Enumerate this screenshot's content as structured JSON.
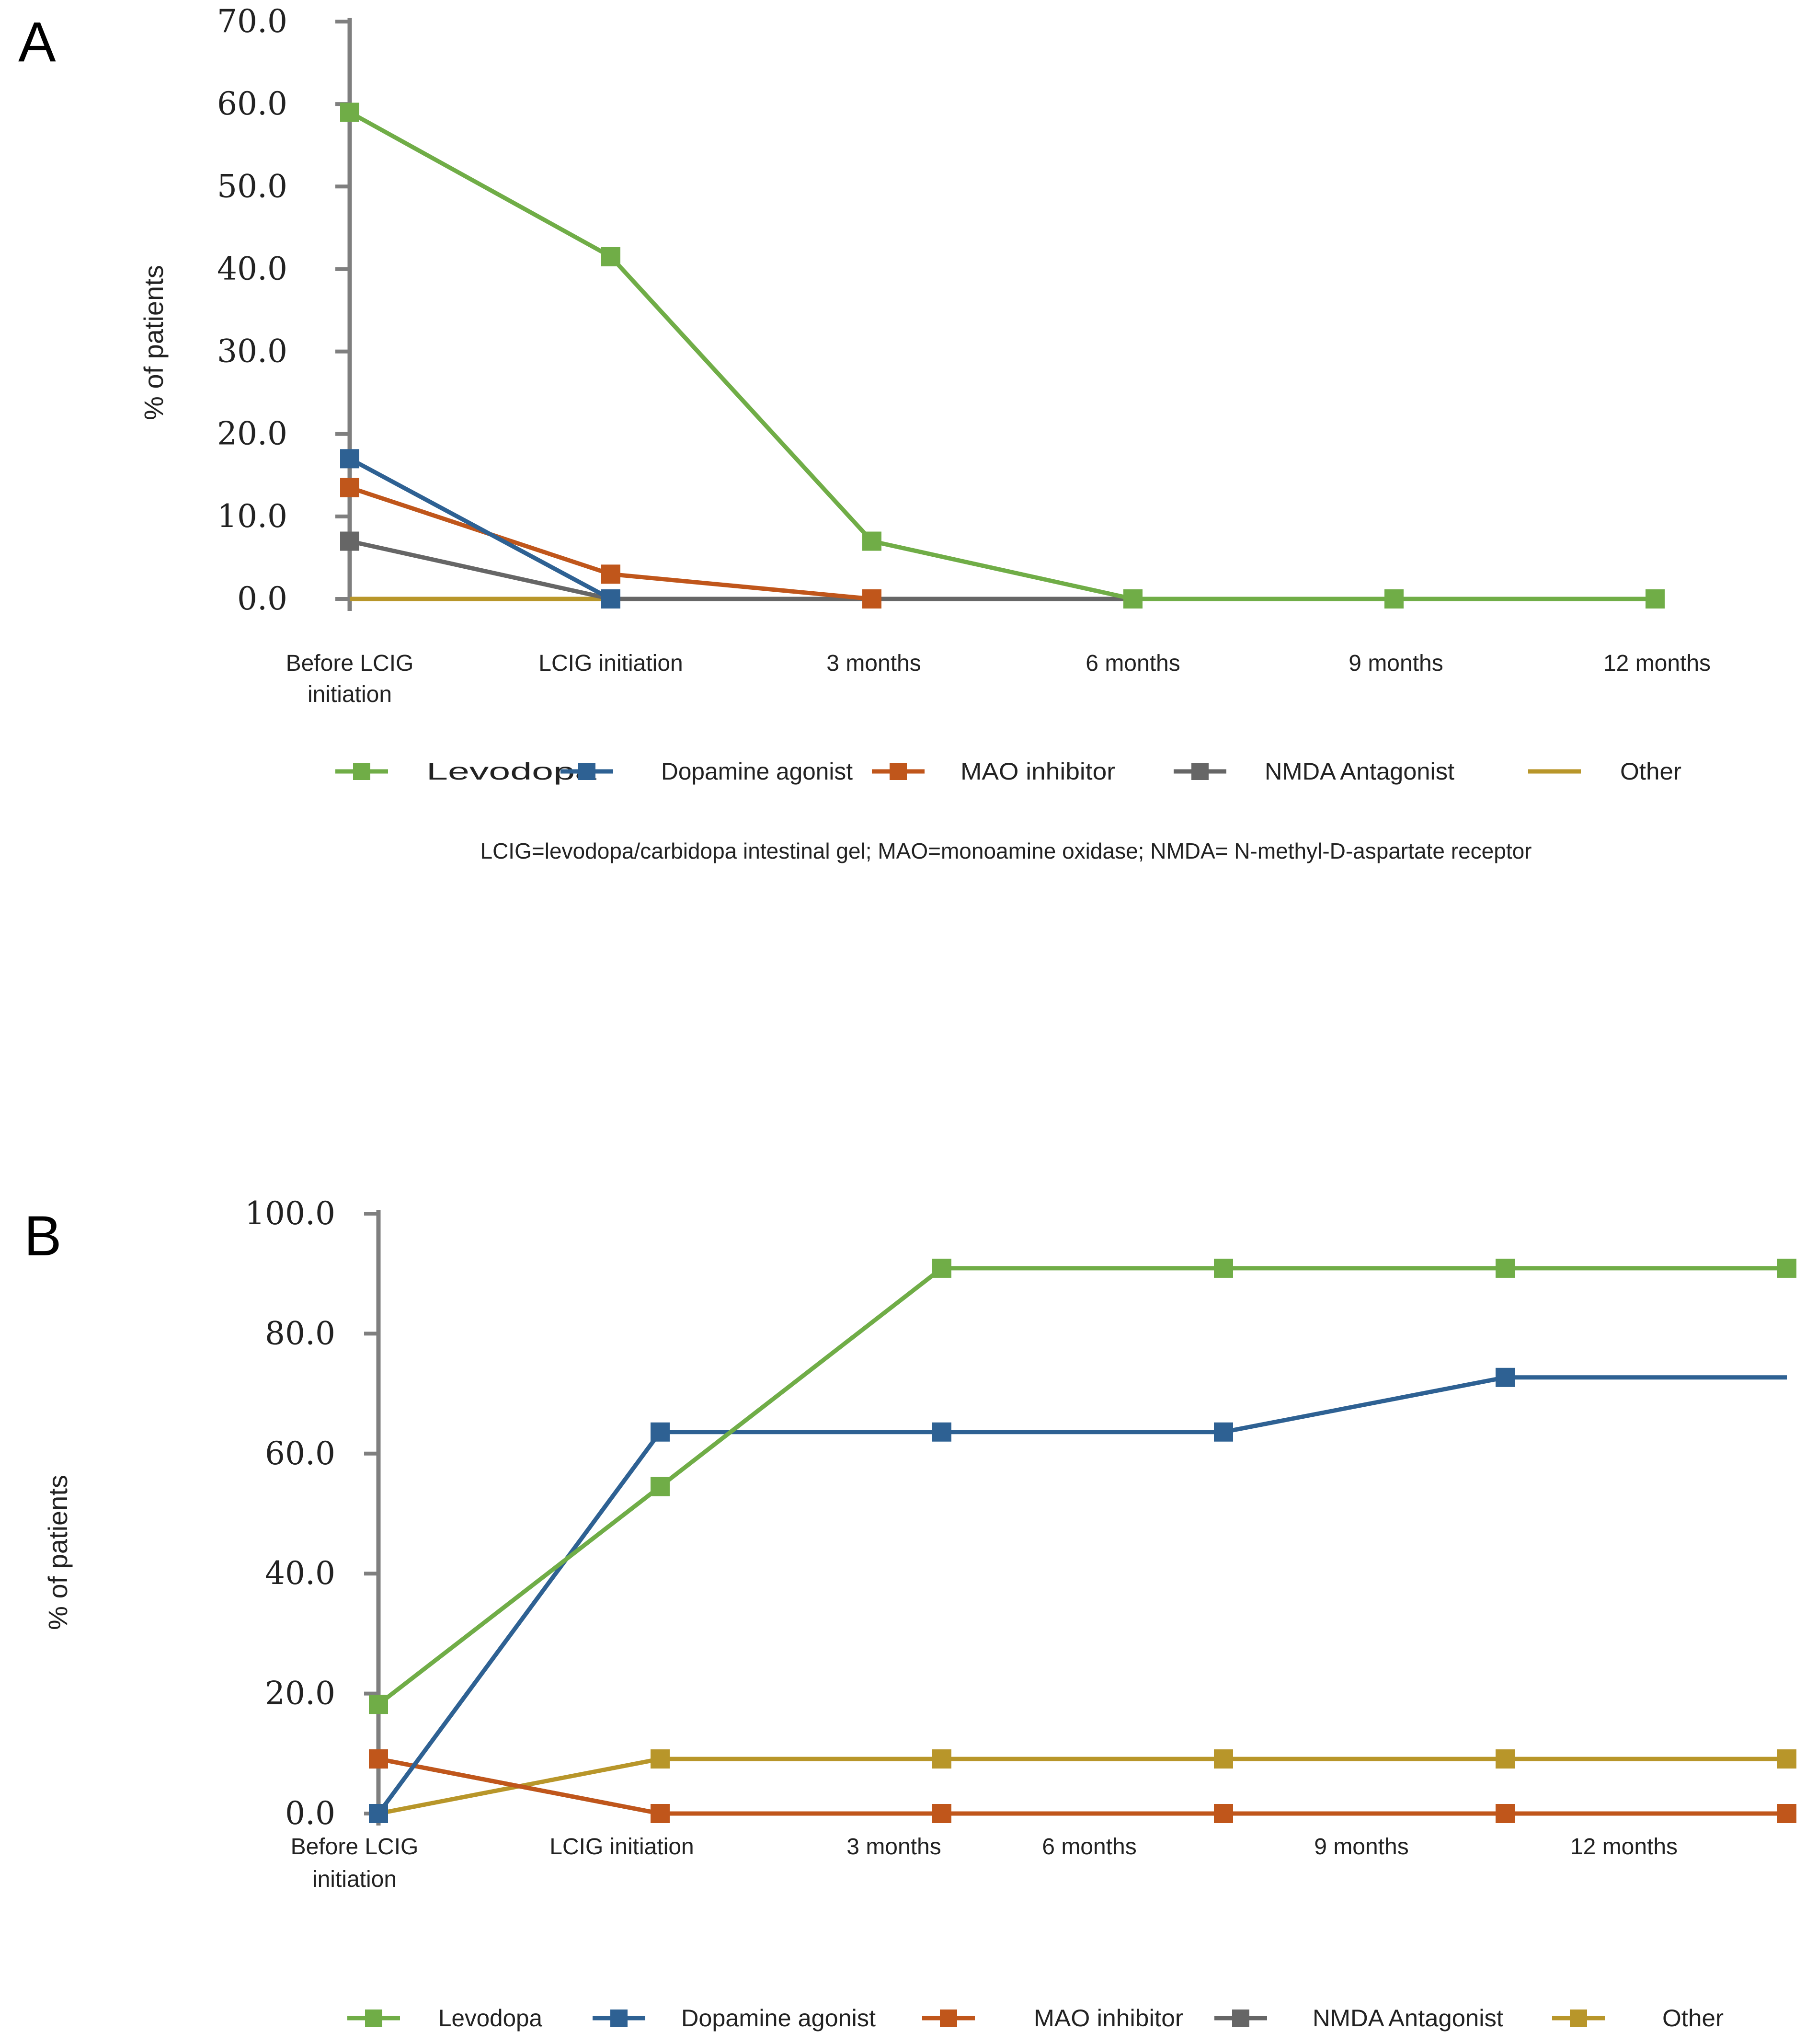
{
  "abbreviation_note": "LCIG=levodopa/carbidopa intestinal gel; MAO=monoamine oxidase; NMDA= N-methyl-D-aspartate receptor",
  "chart_data": [
    {
      "type": "line",
      "panel": "A",
      "title": "",
      "xlabel": "",
      "ylabel": "% of patients",
      "ylim": [
        0,
        70
      ],
      "yticks": [
        "0.0",
        "10.0",
        "20.0",
        "30.0",
        "40.0",
        "50.0",
        "60.0",
        "70.0"
      ],
      "categories": [
        [
          "Before LCIG",
          "initiation"
        ],
        [
          "LCIG initiation"
        ],
        [
          "3 months"
        ],
        [
          "6 months"
        ],
        [
          "9 months"
        ],
        [
          "12 months"
        ]
      ],
      "legend_position": "bottom",
      "series": [
        {
          "name": "Levodopa",
          "color": "#70ad47",
          "marker": true,
          "values": [
            59,
            41.5,
            7,
            0,
            0,
            0
          ]
        },
        {
          "name": "Dopamine agonist",
          "color": "#2e6193",
          "marker": true,
          "values": [
            17,
            0,
            null,
            null,
            null,
            null
          ]
        },
        {
          "name": "MAO inhibitor",
          "color": "#c0561b",
          "marker": true,
          "values": [
            13.5,
            3,
            0,
            null,
            null,
            null
          ]
        },
        {
          "name": "NMDA Antagonist",
          "color": "#666666",
          "marker": true,
          "values": [
            7,
            0,
            0,
            0,
            0,
            0
          ]
        },
        {
          "name": "Other",
          "color": "#b8962a",
          "marker": false,
          "values": [
            0,
            0,
            0,
            0,
            0,
            0
          ]
        }
      ]
    },
    {
      "type": "line",
      "panel": "B",
      "title": "",
      "xlabel": "",
      "ylabel": "% of patients",
      "ylim": [
        0,
        100
      ],
      "yticks": [
        "0.0",
        "20.0",
        "40.0",
        "60.0",
        "80.0",
        "100.0"
      ],
      "categories": [
        [
          "Before LCIG",
          "initiation"
        ],
        [
          "LCIG initiation"
        ],
        [
          "3 months"
        ],
        [
          "6 months"
        ],
        [
          "9 months"
        ],
        [
          "12 months"
        ]
      ],
      "legend_position": "bottom",
      "series": [
        {
          "name": "Levodopa",
          "color": "#70ad47",
          "marker": true,
          "values": [
            18.2,
            54.5,
            90.9,
            90.9,
            90.9,
            90.9
          ]
        },
        {
          "name": "Dopamine agonist",
          "color": "#2e6193",
          "marker": true,
          "last_marker": false,
          "values": [
            0,
            63.6,
            63.6,
            63.6,
            72.7,
            72.7
          ]
        },
        {
          "name": "MAO inhibitor",
          "color": "#c0561b",
          "marker": true,
          "values": [
            9.1,
            0,
            0,
            0,
            0,
            0
          ]
        },
        {
          "name": "NMDA Antagonist",
          "color": "#666666",
          "marker": true,
          "values": [
            9.1,
            0,
            0,
            0,
            0,
            0
          ]
        },
        {
          "name": "Other",
          "color": "#b8962a",
          "marker": true,
          "values": [
            0,
            9.1,
            9.1,
            9.1,
            9.1,
            9.1
          ]
        }
      ]
    }
  ]
}
